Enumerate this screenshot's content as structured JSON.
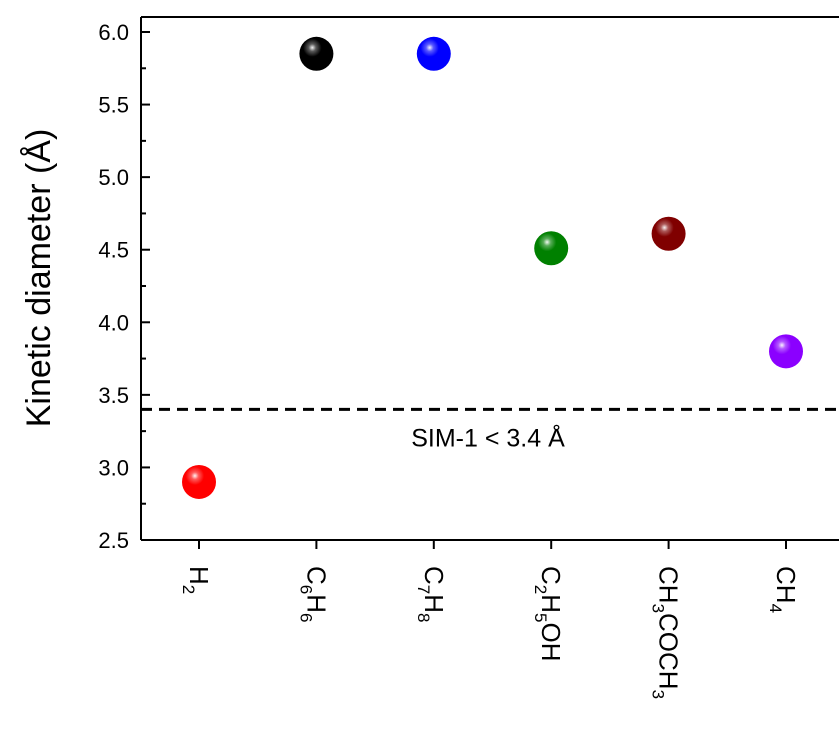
{
  "chart_data": {
    "type": "scatter",
    "ylabel": "Kinetic diameter (Å)",
    "xlabel": "",
    "ylim": [
      2.5,
      6.0
    ],
    "yticks": [
      "2.5",
      "3.0",
      "3.5",
      "4.0",
      "4.5",
      "5.0",
      "5.5",
      "6.0"
    ],
    "y_minor_step": 0.25,
    "grid": false,
    "categories": [
      {
        "parts": [
          [
            "H",
            false
          ],
          [
            "2",
            true
          ]
        ]
      },
      {
        "parts": [
          [
            "C",
            false
          ],
          [
            "6",
            true
          ],
          [
            "H",
            false
          ],
          [
            "6",
            true
          ]
        ]
      },
      {
        "parts": [
          [
            "C",
            false
          ],
          [
            "7",
            true
          ],
          [
            "H",
            false
          ],
          [
            "8",
            true
          ]
        ]
      },
      {
        "parts": [
          [
            "C",
            false
          ],
          [
            "2",
            true
          ],
          [
            "H",
            false
          ],
          [
            "5",
            true
          ],
          [
            "OH",
            false
          ]
        ]
      },
      {
        "parts": [
          [
            "CH",
            false
          ],
          [
            "3",
            true
          ],
          [
            "COCH",
            false
          ],
          [
            "3",
            true
          ]
        ]
      },
      {
        "parts": [
          [
            "CH",
            false
          ],
          [
            "4",
            true
          ]
        ]
      }
    ],
    "values": [
      2.9,
      5.85,
      5.85,
      4.51,
      4.61,
      3.8
    ],
    "colors": [
      "#ff0000",
      "#000000",
      "#0000ff",
      "#008000",
      "#800000",
      "#8b00ff"
    ],
    "threshold": {
      "y": 3.4,
      "style": "dashed",
      "label": "SIM-1 < 3.4 Å"
    }
  }
}
